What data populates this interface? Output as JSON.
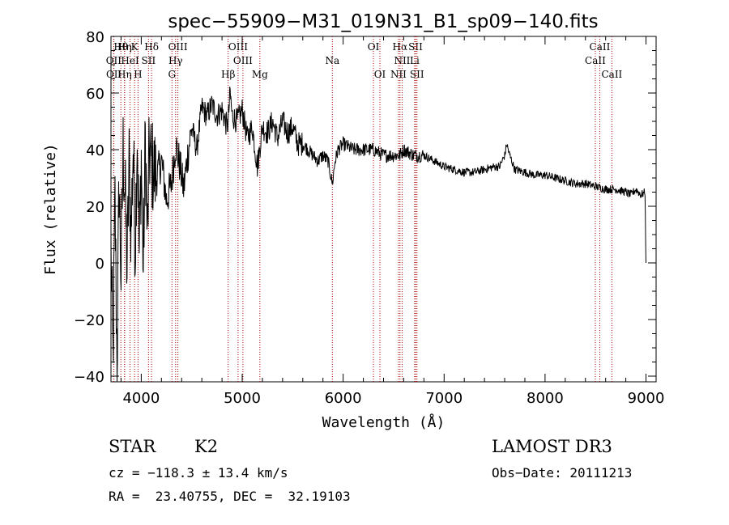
{
  "chart_data": {
    "type": "line",
    "title": "spec−55909−M31_019N31_B1_sp09−140.fits",
    "xlabel": "Wavelength (Å)",
    "ylabel": "Flux (relative)",
    "xlim": [
      3700,
      9100
    ],
    "ylim": [
      -42,
      80
    ],
    "x_ticks": [
      4000,
      5000,
      6000,
      7000,
      8000,
      9000
    ],
    "x_tick_labels": [
      "4000",
      "5000",
      "6000",
      "7000",
      "8000",
      "9000"
    ],
    "y_ticks": [
      -40,
      -20,
      0,
      20,
      40,
      60,
      80
    ],
    "y_tick_labels": [
      "−40",
      "−20",
      "0",
      "20",
      "40",
      "60",
      "80"
    ],
    "series": [
      {
        "name": "flux",
        "x": [
          3700,
          3720,
          3740,
          3760,
          3780,
          3800,
          3820,
          3840,
          3860,
          3880,
          3900,
          3920,
          3940,
          3960,
          3980,
          4000,
          4020,
          4040,
          4060,
          4080,
          4100,
          4150,
          4200,
          4250,
          4300,
          4340,
          4380,
          4420,
          4460,
          4500,
          4550,
          4600,
          4650,
          4700,
          4750,
          4800,
          4850,
          4861,
          4880,
          4900,
          4950,
          5000,
          5050,
          5100,
          5150,
          5200,
          5250,
          5300,
          5350,
          5400,
          5450,
          5500,
          5550,
          5600,
          5650,
          5700,
          5750,
          5800,
          5850,
          5893,
          5920,
          5950,
          6000,
          6100,
          6200,
          6300,
          6400,
          6500,
          6562,
          6600,
          6700,
          6800,
          6900,
          7000,
          7100,
          7200,
          7300,
          7400,
          7500,
          7550,
          7600,
          7620,
          7650,
          7700,
          7800,
          7900,
          8000,
          8100,
          8200,
          8300,
          8400,
          8500,
          8600,
          8700,
          8800,
          8850,
          8900,
          8950,
          8990,
          9000
        ],
        "y": [
          5,
          -35,
          22,
          -38,
          30,
          -5,
          40,
          25,
          -3,
          35,
          10,
          42,
          5,
          48,
          2,
          38,
          -3,
          45,
          8,
          40,
          35,
          30,
          36,
          22,
          28,
          42,
          35,
          26,
          38,
          48,
          40,
          55,
          52,
          56,
          52,
          54,
          48,
          50,
          60,
          52,
          50,
          54,
          44,
          48,
          34,
          48,
          46,
          50,
          44,
          50,
          46,
          48,
          42,
          42,
          40,
          38,
          36,
          38,
          36,
          28,
          36,
          40,
          42,
          40,
          40,
          40,
          38,
          38,
          38,
          40,
          38,
          38,
          36,
          34,
          33,
          32,
          32,
          33,
          34,
          34,
          38,
          42,
          38,
          33,
          32,
          31,
          31,
          30,
          29,
          28,
          28,
          27,
          26,
          26,
          25,
          24,
          26,
          24,
          25,
          0
        ]
      }
    ],
    "spectral_lines": [
      {
        "label": "Hθ",
        "x": 3798,
        "row": 1
      },
      {
        "label": "K",
        "x": 3934,
        "row": 1
      },
      {
        "label": "Hδ",
        "x": 4102,
        "row": 1
      },
      {
        "label": "OIII",
        "x": 4363,
        "row": 1
      },
      {
        "label": "OIII",
        "x": 4959,
        "row": 1
      },
      {
        "label": "OI",
        "x": 6300,
        "row": 1
      },
      {
        "label": "Hα",
        "x": 6563,
        "row": 1
      },
      {
        "label": "SII",
        "x": 6717,
        "row": 1
      },
      {
        "label": "CaII",
        "x": 8542,
        "row": 1
      },
      {
        "label": "Hη",
        "x": 3835,
        "row": 1
      },
      {
        "label": "OII",
        "x": 3727,
        "row": 2
      },
      {
        "label": "HeI",
        "x": 3889,
        "row": 2
      },
      {
        "label": "SII",
        "x": 4072,
        "row": 2
      },
      {
        "label": "Hγ",
        "x": 4340,
        "row": 2
      },
      {
        "label": "OIII",
        "x": 5007,
        "row": 2
      },
      {
        "label": "Na",
        "x": 5893,
        "row": 2
      },
      {
        "label": "NII",
        "x": 6584,
        "row": 2
      },
      {
        "label": "Li",
        "x": 6708,
        "row": 2
      },
      {
        "label": "CaII",
        "x": 8498,
        "row": 2
      },
      {
        "label": "OII",
        "x": 3729,
        "row": 3
      },
      {
        "label": "Hη",
        "x": 3835,
        "row": 3
      },
      {
        "label": "H",
        "x": 3968,
        "row": 3
      },
      {
        "label": "G",
        "x": 4304,
        "row": 3
      },
      {
        "label": "Hβ",
        "x": 4861,
        "row": 3
      },
      {
        "label": "Mg",
        "x": 5175,
        "row": 3
      },
      {
        "label": "OI",
        "x": 6364,
        "row": 3
      },
      {
        "label": "NII",
        "x": 6548,
        "row": 3
      },
      {
        "label": "SII",
        "x": 6731,
        "row": 3
      },
      {
        "label": "CaII",
        "x": 8662,
        "row": 3
      }
    ],
    "line_color": "#aa0000",
    "series_color": "#000000"
  },
  "info": {
    "class_label": "STAR",
    "subclass_label": "K2",
    "survey_label": "LAMOST DR3",
    "cz_text": "cz = −118.3 ± 13.4 km/s",
    "obs_date_text": "Obs−Date: 20111213",
    "radec_text": "RA =  23.40755, DEC =  32.19103"
  }
}
